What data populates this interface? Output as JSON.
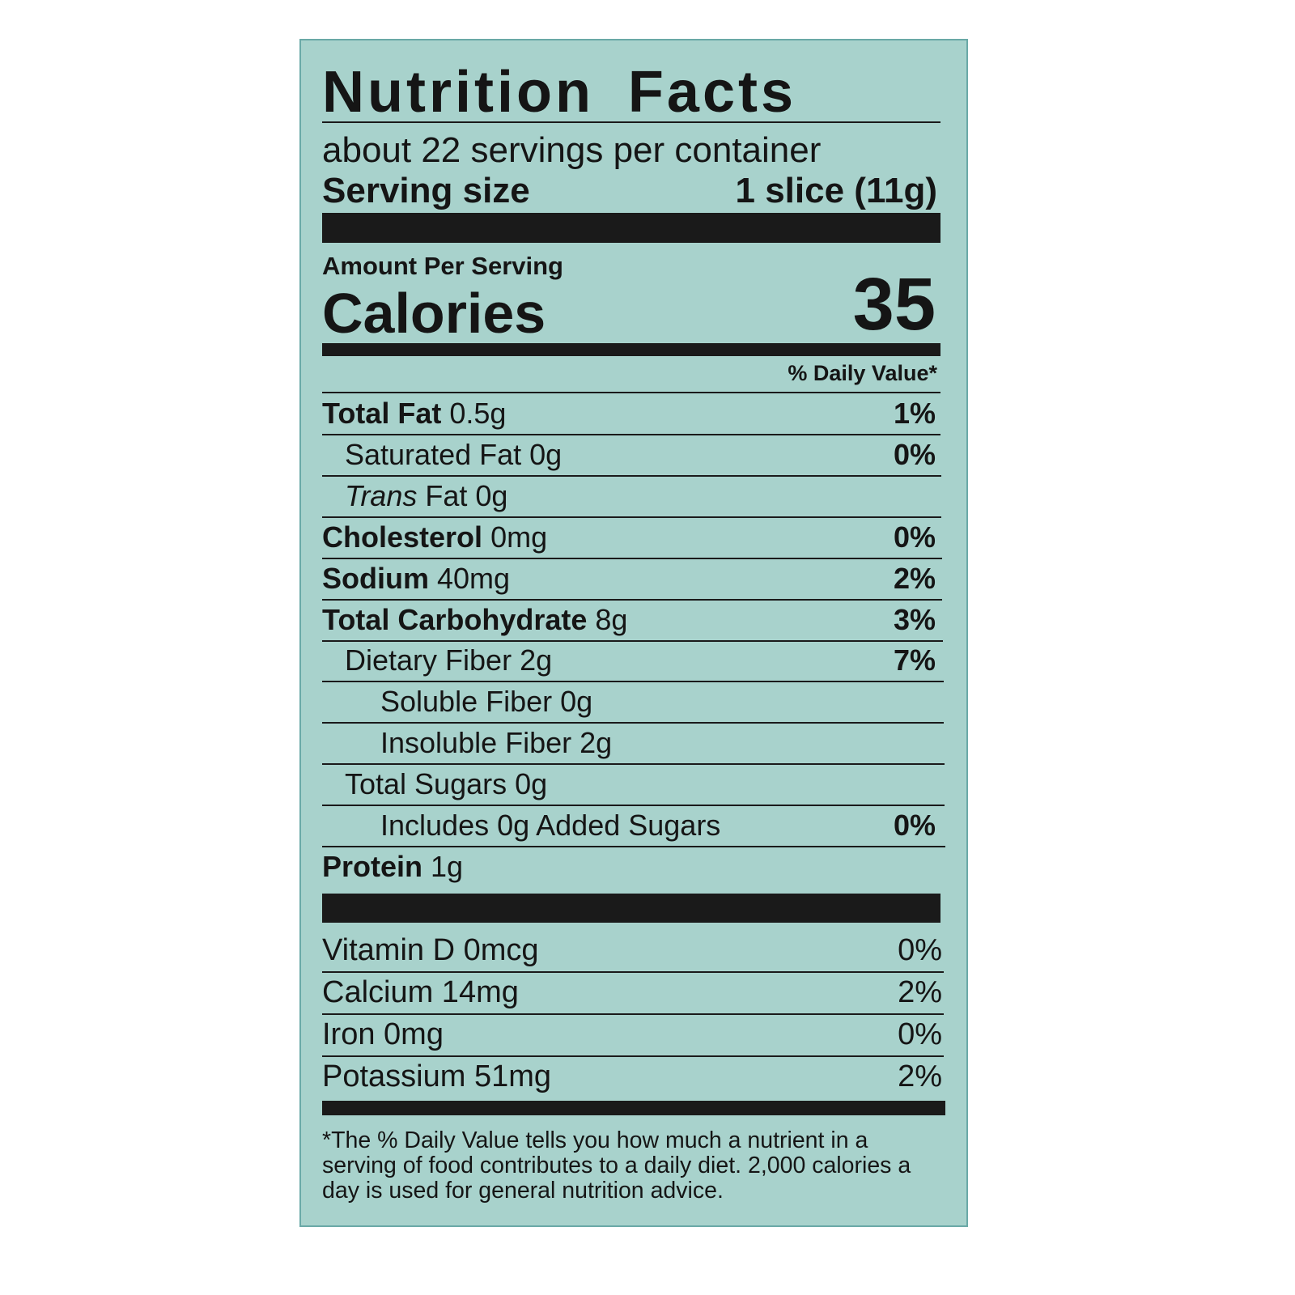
{
  "label": {
    "title": "Nutrition Facts",
    "servings": "about 22 servings per container",
    "serving_size_label": "Serving size",
    "serving_size_value": "1 slice (11g)",
    "amount_per_serving": "Amount Per Serving",
    "calories_label": "Calories",
    "calories_value": "35",
    "daily_value_header": "% Daily Value*",
    "nutrients": [
      {
        "label": "Total Fat",
        "amount": "0.5g",
        "dv": "1%"
      },
      {
        "label": "Saturated Fat",
        "amount": "0g",
        "dv": "0%"
      },
      {
        "label_italic": "Trans",
        "label": "Fat",
        "amount": "0g"
      },
      {
        "label": "Cholesterol",
        "amount": "0mg",
        "dv": "0%"
      },
      {
        "label": "Sodium",
        "amount": "40mg",
        "dv": "2%"
      },
      {
        "label": "Total Carbohydrate",
        "amount": "8g",
        "dv": "3%"
      },
      {
        "label": "Dietary Fiber",
        "amount": "2g",
        "dv": "7%"
      },
      {
        "label": "Soluble Fiber",
        "amount": "0g"
      },
      {
        "label": "Insoluble Fiber",
        "amount": "2g"
      },
      {
        "label": "Total Sugars",
        "amount": "0g"
      },
      {
        "label": "Includes 0g Added Sugars",
        "dv": "0%"
      },
      {
        "label": "Protein",
        "amount": "1g"
      }
    ],
    "vitamins": [
      {
        "label": "Vitamin D 0mcg",
        "dv": "0%"
      },
      {
        "label": "Calcium 14mg",
        "dv": "2%"
      },
      {
        "label": "Iron 0mg",
        "dv": "0%"
      },
      {
        "label": "Potassium 51mg",
        "dv": "2%"
      }
    ],
    "footnote": "*The % Daily Value tells you how much a nutrient in a serving of food contributes to a daily diet. 2,000 calories a day is used for general nutrition advice."
  }
}
